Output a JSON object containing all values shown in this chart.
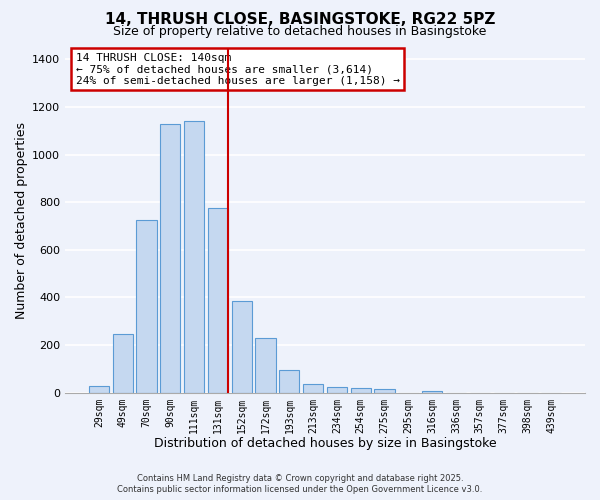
{
  "title": "14, THRUSH CLOSE, BASINGSTOKE, RG22 5PZ",
  "subtitle": "Size of property relative to detached houses in Basingstoke",
  "xlabel": "Distribution of detached houses by size in Basingstoke",
  "ylabel": "Number of detached properties",
  "categories": [
    "29sqm",
    "49sqm",
    "70sqm",
    "90sqm",
    "111sqm",
    "131sqm",
    "152sqm",
    "172sqm",
    "193sqm",
    "213sqm",
    "234sqm",
    "254sqm",
    "275sqm",
    "295sqm",
    "316sqm",
    "336sqm",
    "357sqm",
    "377sqm",
    "398sqm",
    "439sqm"
  ],
  "values": [
    30,
    245,
    725,
    1130,
    1140,
    775,
    385,
    230,
    95,
    35,
    25,
    20,
    15,
    0,
    8,
    0,
    0,
    0,
    0,
    0
  ],
  "bar_color": "#c5d8f0",
  "bar_edge_color": "#5b9bd5",
  "background_color": "#eef2fb",
  "grid_color": "#ffffff",
  "ylim": [
    0,
    1450
  ],
  "yticks": [
    0,
    200,
    400,
    600,
    800,
    1000,
    1200,
    1400
  ],
  "red_line_index": 5,
  "annotation_title": "14 THRUSH CLOSE: 140sqm",
  "annotation_line1": "← 75% of detached houses are smaller (3,614)",
  "annotation_line2": "24% of semi-detached houses are larger (1,158) →",
  "annotation_box_color": "#ffffff",
  "annotation_box_edge": "#cc0000",
  "footer1": "Contains HM Land Registry data © Crown copyright and database right 2025.",
  "footer2": "Contains public sector information licensed under the Open Government Licence v3.0."
}
